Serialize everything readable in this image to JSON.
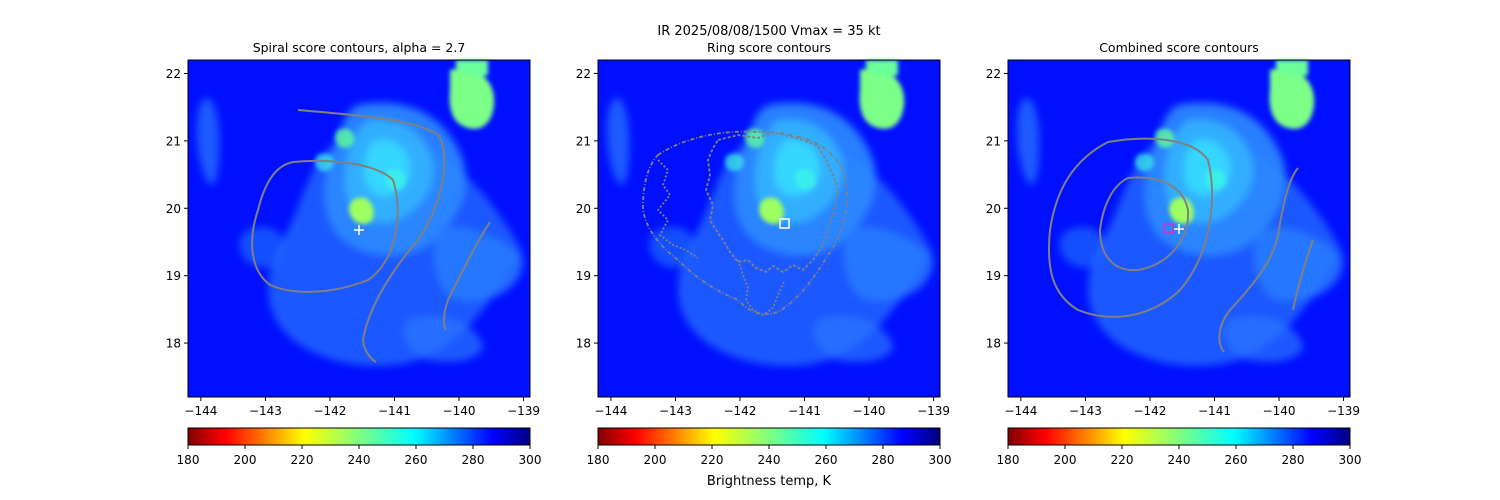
{
  "figure": {
    "suptitle_line1": "IR  2025/08/08/1500    Vmax = 35 kt",
    "colorbar_label": "Brightness temp, K"
  },
  "chart_data": [
    {
      "type": "heatmap",
      "title": "Spiral score contours, alpha =  2.7",
      "xlim": [
        -144.2,
        -138.9
      ],
      "ylim": [
        17.2,
        22.2
      ],
      "xticks": [
        -144,
        -143,
        -142,
        -141,
        -140,
        -139
      ],
      "yticks": [
        18,
        19,
        20,
        21,
        22
      ],
      "xtick_labels": [
        "−144",
        "−143",
        "−142",
        "−141",
        "−140",
        "−139"
      ],
      "ytick_labels": [
        "18",
        "19",
        "20",
        "21",
        "22"
      ],
      "colorbar": {
        "min": 180,
        "max": 300,
        "ticks": [
          180,
          200,
          220,
          240,
          260,
          280,
          300
        ],
        "colormap": "jet_r"
      },
      "markers": [
        {
          "label": "best-track center",
          "symbol": "+",
          "x": -141.5,
          "y": 19.7,
          "color": "#ffffff"
        }
      ],
      "contour_color": "#808080"
    },
    {
      "type": "heatmap",
      "title": "Ring score contours",
      "xlim": [
        -144.2,
        -138.9
      ],
      "ylim": [
        17.2,
        22.2
      ],
      "xticks": [
        -144,
        -143,
        -142,
        -141,
        -140,
        -139
      ],
      "yticks": [
        18,
        19,
        20,
        21,
        22
      ],
      "xtick_labels": [
        "−144",
        "−143",
        "−142",
        "−141",
        "−140",
        "−139"
      ],
      "ytick_labels": [
        "18",
        "19",
        "20",
        "21",
        "22"
      ],
      "colorbar": {
        "min": 180,
        "max": 300,
        "ticks": [
          180,
          200,
          220,
          240,
          260,
          280,
          300
        ],
        "colormap": "jet_r"
      },
      "markers": [
        {
          "label": "ring center",
          "symbol": "square",
          "x": -141.2,
          "y": 19.75,
          "color": "#ffffff"
        }
      ],
      "contour_color": "#808080"
    },
    {
      "type": "heatmap",
      "title": "Combined score contours",
      "xlim": [
        -144.2,
        -138.9
      ],
      "ylim": [
        17.2,
        22.2
      ],
      "xticks": [
        -144,
        -143,
        -142,
        -141,
        -140,
        -139
      ],
      "yticks": [
        18,
        19,
        20,
        21,
        22
      ],
      "xtick_labels": [
        "−144",
        "−143",
        "−142",
        "−141",
        "−140",
        "−139"
      ],
      "ytick_labels": [
        "18",
        "19",
        "20",
        "21",
        "22"
      ],
      "colorbar": {
        "min": 180,
        "max": 300,
        "ticks": [
          180,
          200,
          220,
          240,
          260,
          280,
          300
        ],
        "colormap": "jet_r"
      },
      "markers": [
        {
          "label": "combined center",
          "symbol": "square",
          "x": -141.65,
          "y": 19.7,
          "color": "#cc33cc"
        },
        {
          "label": "best-track center",
          "symbol": "+",
          "x": -141.5,
          "y": 19.7,
          "color": "#ffffff"
        }
      ],
      "contour_color": "#808080"
    }
  ]
}
